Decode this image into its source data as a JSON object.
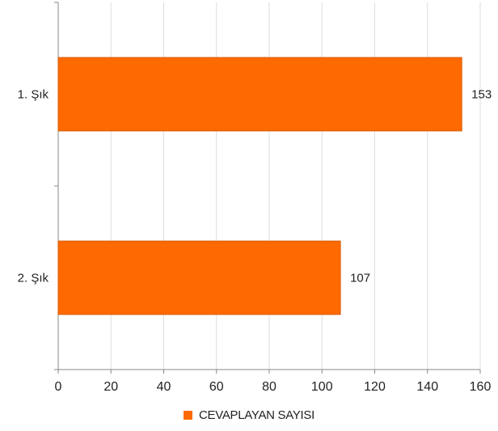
{
  "chart_data": {
    "type": "bar",
    "orientation": "horizontal",
    "categories": [
      "1. Şık",
      "2. Şık"
    ],
    "series": [
      {
        "name": "CEVAPLAYAN SAYISI",
        "values": [
          153,
          107
        ],
        "color": "#ff6a00"
      }
    ],
    "data_labels": [
      "153",
      "107"
    ],
    "x_ticks": [
      "0",
      "20",
      "40",
      "60",
      "80",
      "100",
      "120",
      "140",
      "160"
    ],
    "xlim": [
      0,
      160
    ],
    "grid": true,
    "legend_position": "bottom",
    "colors": {
      "bar_fill": "#ff6a00",
      "bar_stroke": "#d65a00",
      "grid": "#dddddd",
      "axis": "#888888"
    }
  }
}
